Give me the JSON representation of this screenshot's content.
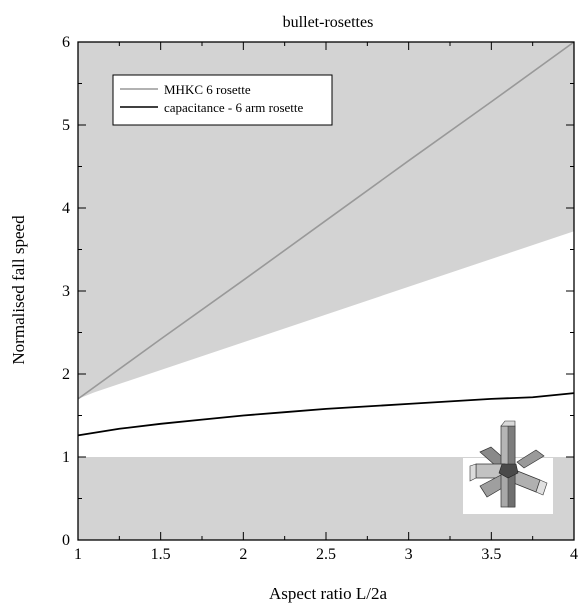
{
  "chart_data": {
    "type": "line",
    "title": "bullet-rosettes",
    "xlabel": "Aspect ratio L/2a",
    "ylabel": "Normalised fall speed",
    "xlim": [
      1,
      4
    ],
    "ylim": [
      0,
      6
    ],
    "xticks": [
      1,
      1.5,
      2,
      2.5,
      3,
      3.5,
      4
    ],
    "xtick_labels": [
      "1",
      "1.5",
      "2",
      "2.5",
      "3",
      "3.5",
      "4"
    ],
    "yticks": [
      0,
      1,
      2,
      3,
      4,
      5,
      6
    ],
    "ytick_labels": [
      "0",
      "1",
      "2",
      "3",
      "4",
      "5",
      "6"
    ],
    "grid": false,
    "legend_position": "top-left",
    "series": [
      {
        "name": "MHKC 6 rosette",
        "color": "#999999",
        "x": [
          1,
          1.5,
          2,
          2.5,
          3,
          3.5,
          4
        ],
        "y": [
          1.7,
          2.42,
          3.13,
          3.85,
          4.57,
          5.28,
          6.0
        ]
      },
      {
        "name": "capacitance - 6 arm rosette",
        "color": "#000000",
        "x": [
          1,
          1.25,
          1.5,
          1.75,
          2,
          2.25,
          2.5,
          2.75,
          3,
          3.25,
          3.5,
          3.75,
          4
        ],
        "y": [
          1.26,
          1.34,
          1.4,
          1.45,
          1.5,
          1.54,
          1.58,
          1.61,
          1.64,
          1.67,
          1.7,
          1.72,
          1.77
        ]
      }
    ],
    "shaded_regions": [
      {
        "color": "#d3d3d3",
        "upper": {
          "x": [
            1,
            4
          ],
          "y": [
            6,
            6
          ]
        },
        "lower": {
          "x": [
            1,
            1.1,
            4
          ],
          "y": [
            1.7,
            1.78,
            3.72
          ]
        }
      },
      {
        "color": "#d3d3d3",
        "upper": {
          "x": [
            1,
            4
          ],
          "y": [
            1,
            1
          ]
        },
        "lower": {
          "x": [
            1,
            4
          ],
          "y": [
            0,
            0
          ]
        }
      }
    ],
    "inset": {
      "icon": "bullet-rosette-icon",
      "position": "bottom-right"
    }
  }
}
